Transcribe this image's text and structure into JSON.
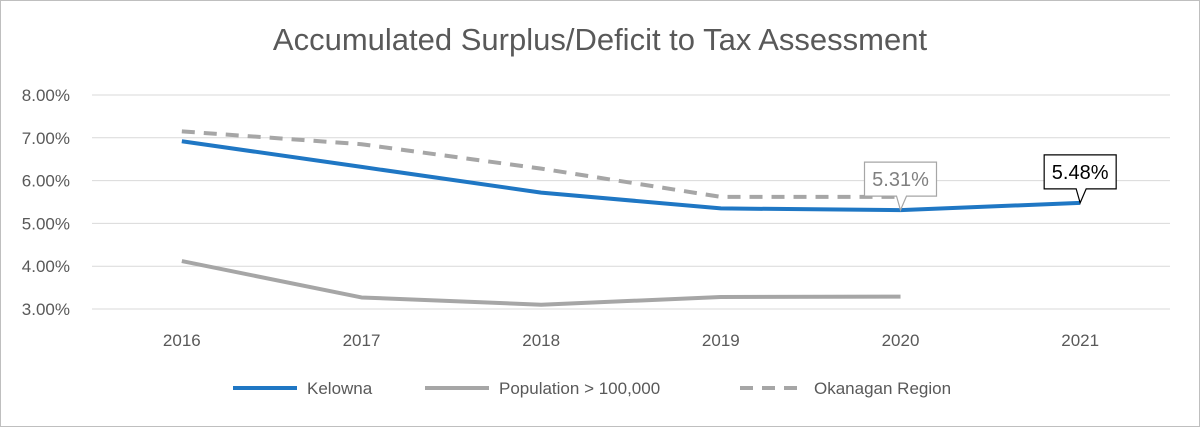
{
  "chart_data": {
    "type": "line",
    "title": "Accumulated Surplus/Deficit to Tax Assessment",
    "xlabel": "",
    "ylabel": "",
    "categories": [
      "2016",
      "2017",
      "2018",
      "2019",
      "2020",
      "2021"
    ],
    "ylim": [
      3.0,
      8.0
    ],
    "yticks": [
      "3.00%",
      "4.00%",
      "5.00%",
      "6.00%",
      "7.00%",
      "8.00%"
    ],
    "grid": true,
    "legend_position": "bottom",
    "series": [
      {
        "name": "Kelowna",
        "values": [
          6.92,
          6.32,
          5.72,
          5.35,
          5.31,
          5.48
        ],
        "color": "#1f77c4",
        "style": "solid"
      },
      {
        "name": "Population > 100,000",
        "values": [
          4.12,
          3.27,
          3.1,
          3.28,
          3.29,
          null
        ],
        "color": "#a6a6a6",
        "style": "solid"
      },
      {
        "name": "Okanagan Region",
        "values": [
          7.15,
          6.85,
          6.28,
          5.62,
          5.62,
          null
        ],
        "color": "#a6a6a6",
        "style": "dashed"
      }
    ],
    "annotations": [
      {
        "series": "Kelowna",
        "category": "2020",
        "label": "5.31%",
        "color": "#808080",
        "border": "#a6a6a6"
      },
      {
        "series": "Kelowna",
        "category": "2021",
        "label": "5.48%",
        "color": "#000000",
        "border": "#000000"
      }
    ]
  }
}
